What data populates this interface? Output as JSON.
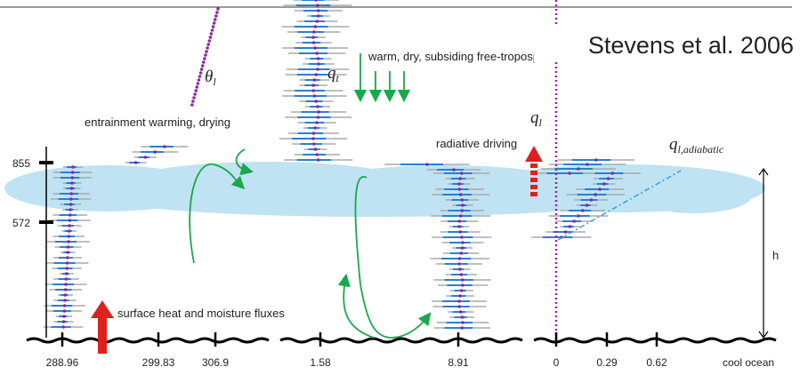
{
  "citation": "Stevens et al. 2006",
  "labels": {
    "theta_l": {
      "symbol": "θ",
      "subscript": "l"
    },
    "q_t": {
      "symbol": "q",
      "subscript": "t"
    },
    "q_l": {
      "symbol": "q",
      "subscript": "l"
    },
    "q_l_adiabatic": {
      "symbol": "q",
      "subscript": "l,adiabatic"
    },
    "free_troposphere": "warm, dry, subsiding free-troposphere",
    "entrainment": "entrainment warming, drying",
    "radiative": "radiative driving",
    "surface_fluxes": "surface heat and moisture fluxes",
    "height": "h",
    "ocean": "cool ocean"
  },
  "height_ticks": [
    "855",
    "572"
  ],
  "axis_ticks": {
    "theta": [
      "288.96",
      "299.83",
      "306.9"
    ],
    "q_t": [
      "1.58",
      "8.91"
    ],
    "q_l": [
      "0",
      "0.29",
      "0.62"
    ]
  }
}
